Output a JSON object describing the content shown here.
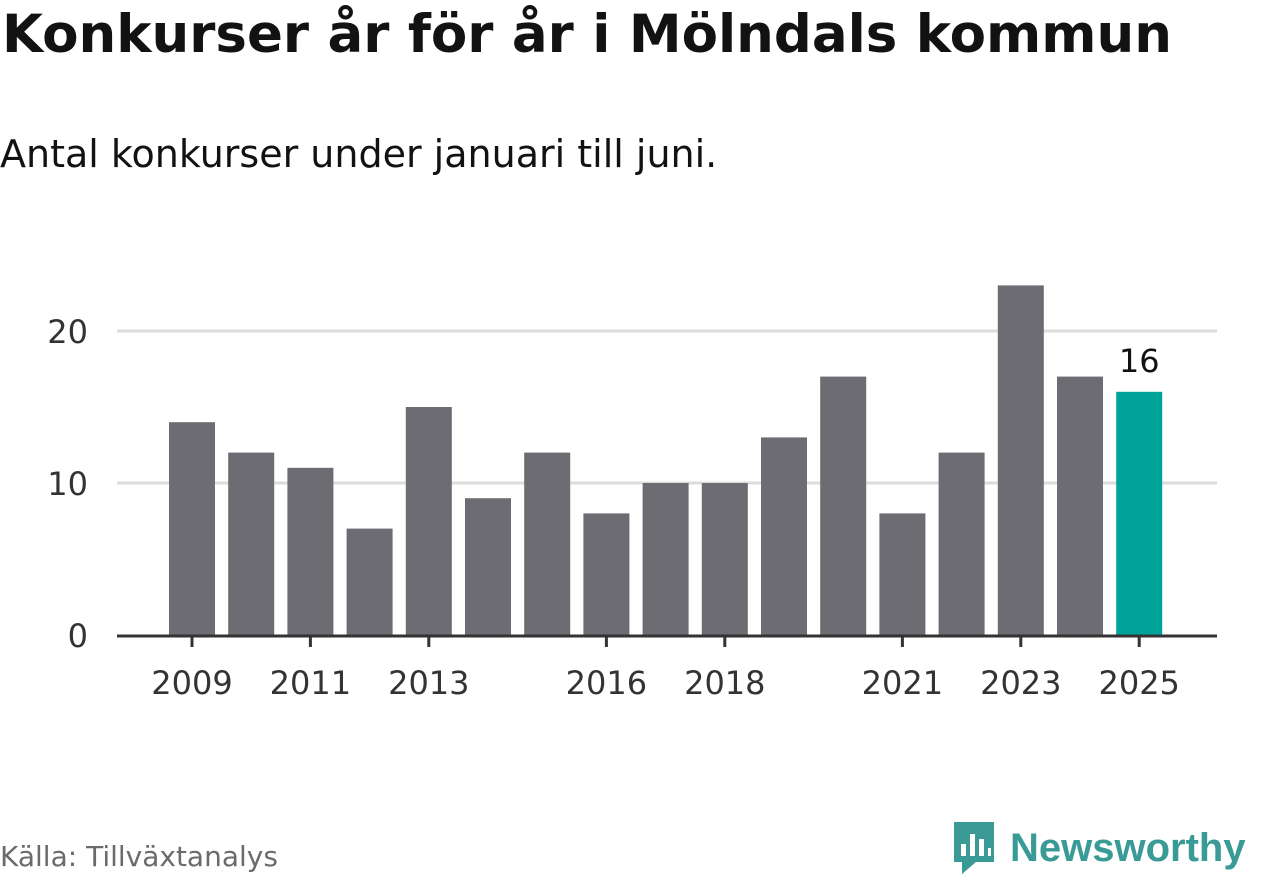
{
  "title": "Konkurser år för år i Mölndals kommun",
  "subtitle": "Antal konkurser under januari till juni.",
  "source": "Källa: Tillväxtanalys",
  "brand": {
    "name": "Newsworthy",
    "icon": "newsworthy-logo-icon",
    "color": "#3a9a95"
  },
  "chart_data": {
    "type": "bar",
    "categories": [
      "2009",
      "2010",
      "2011",
      "2012",
      "2013",
      "2014",
      "2015",
      "2016",
      "2017",
      "2018",
      "2019",
      "2020",
      "2021",
      "2022",
      "2023",
      "2024",
      "2025"
    ],
    "values": [
      14,
      12,
      11,
      7,
      15,
      9,
      12,
      8,
      10,
      10,
      13,
      17,
      8,
      12,
      23,
      17,
      16
    ],
    "x_tick_labels": [
      "2009",
      "2011",
      "2013",
      "2016",
      "2018",
      "2021",
      "2023",
      "2025"
    ],
    "y_ticks": [
      0,
      10,
      20
    ],
    "ylim": [
      0,
      23
    ],
    "grid": true,
    "highlight": {
      "category": "2025",
      "value": 16,
      "label": "16"
    },
    "colors": {
      "bar": "#6d6c72",
      "highlight": "#00a39a",
      "grid": "#dcdcdc",
      "axis": "#333333",
      "tick_text": "#333333"
    }
  }
}
